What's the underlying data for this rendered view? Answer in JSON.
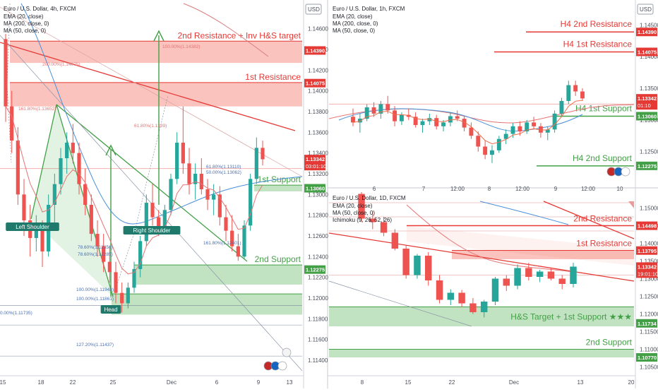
{
  "chart_data": [
    {
      "type": "candlestick",
      "header": {
        "symbol": "Euro / U.S. Dollar, 4h, FXCM",
        "lines": [
          "EMA (20, close)",
          "MA (200, close, 0)",
          "MA (50, close, 0)"
        ]
      },
      "currency": "USD",
      "ylim": [
        1.1125,
        1.1485
      ],
      "y_ticks": [
        "1.14600",
        "1.14400",
        "1.14200",
        "1.14000",
        "1.13800",
        "1.13600",
        "1.13400",
        "1.13200",
        "1.13000",
        "1.12800",
        "1.12600",
        "1.12400",
        "1.12200",
        "1.12000",
        "1.11800",
        "1.11600",
        "1.11400"
      ],
      "x_ticks": [
        "15",
        "18",
        "22",
        "25",
        "Dec",
        "6",
        "9",
        "13"
      ],
      "price_tags": [
        {
          "value": "1.14390",
          "price": 1.1439,
          "color": "#e53935"
        },
        {
          "value": "1.14075",
          "price": 1.14075,
          "color": "#e53935"
        },
        {
          "value": "1.13342",
          "sub": "03:01:10",
          "price": 1.13342,
          "color": "#e53935"
        },
        {
          "value": "1.13060",
          "price": 1.1306,
          "color": "#43a047"
        },
        {
          "value": "1.12275",
          "price": 1.12275,
          "color": "#43a047"
        }
      ],
      "zones": [
        {
          "label": "2nd Resistance + Inv H&S target",
          "from": 1.1427,
          "to": 1.1448,
          "kind": "resistance"
        },
        {
          "label": "1st Resistance",
          "from": 1.1385,
          "to": 1.1408,
          "kind": "resistance"
        },
        {
          "label": "1st Support",
          "from": 1.1303,
          "to": 1.1309,
          "kind": "support"
        },
        {
          "label": "2nd Support",
          "from": 1.1213,
          "to": 1.1232,
          "kind": "support"
        },
        {
          "label": "",
          "from": 1.1184,
          "to": 1.1204,
          "kind": "support"
        }
      ],
      "fib_labels": [
        "100.00%(1.14382)",
        "200.00%(1.14075)",
        "161.80%(1.13652)",
        "61.80%(1.1339)",
        "61.80%(1.13110)",
        "50.00%(1.13062)",
        "161.80%(1.12401)",
        "78.60%(1.12356)",
        "78.60%(1.12285)",
        "100.00%(1.11948)",
        "100.00%(1.11861)",
        "0.00%(1.11735)",
        "127.20%(1.11437)"
      ],
      "pattern_labels": [
        "Left Shoulder",
        "Head",
        "Right Shoulder"
      ],
      "candles": [
        [
          1.145,
          1.1455,
          1.137,
          1.1385
        ],
        [
          1.1385,
          1.14,
          1.134,
          1.1352
        ],
        [
          1.1352,
          1.1365,
          1.129,
          1.13
        ],
        [
          1.13,
          1.1315,
          1.126,
          1.1275
        ],
        [
          1.1275,
          1.129,
          1.124,
          1.1258
        ],
        [
          1.1258,
          1.128,
          1.1245,
          1.1268
        ],
        [
          1.1268,
          1.1275,
          1.123,
          1.1245
        ],
        [
          1.1245,
          1.13,
          1.124,
          1.129
        ],
        [
          1.129,
          1.132,
          1.127,
          1.131
        ],
        [
          1.131,
          1.1345,
          1.13,
          1.1335
        ],
        [
          1.1335,
          1.136,
          1.132,
          1.135
        ],
        [
          1.135,
          1.1368,
          1.133,
          1.134
        ],
        [
          1.134,
          1.135,
          1.13,
          1.131
        ],
        [
          1.131,
          1.1325,
          1.128,
          1.129
        ],
        [
          1.129,
          1.13,
          1.1255,
          1.1262
        ],
        [
          1.1262,
          1.1275,
          1.124,
          1.125
        ],
        [
          1.125,
          1.1262,
          1.1225,
          1.1235
        ],
        [
          1.1235,
          1.125,
          1.1215,
          1.1225
        ],
        [
          1.1225,
          1.1235,
          1.1195,
          1.1205
        ],
        [
          1.1205,
          1.1215,
          1.1186,
          1.1195
        ],
        [
          1.1195,
          1.1215,
          1.119,
          1.121
        ],
        [
          1.121,
          1.1235,
          1.1205,
          1.1228
        ],
        [
          1.1228,
          1.126,
          1.122,
          1.1255
        ],
        [
          1.1255,
          1.13,
          1.125,
          1.1292
        ],
        [
          1.1292,
          1.131,
          1.127,
          1.1278
        ],
        [
          1.1278,
          1.1285,
          1.126,
          1.1268
        ],
        [
          1.1268,
          1.129,
          1.1262,
          1.1285
        ],
        [
          1.1285,
          1.132,
          1.128,
          1.1315
        ],
        [
          1.1315,
          1.136,
          1.131,
          1.135
        ],
        [
          1.135,
          1.1385,
          1.132,
          1.133
        ],
        [
          1.133,
          1.1345,
          1.13,
          1.131
        ],
        [
          1.131,
          1.133,
          1.1295,
          1.132
        ],
        [
          1.132,
          1.1335,
          1.13,
          1.1305
        ],
        [
          1.1305,
          1.1315,
          1.1285,
          1.1295
        ],
        [
          1.1295,
          1.131,
          1.128,
          1.13
        ],
        [
          1.13,
          1.1308,
          1.127,
          1.1278
        ],
        [
          1.1278,
          1.129,
          1.1255,
          1.1265
        ],
        [
          1.1265,
          1.128,
          1.1245,
          1.125
        ],
        [
          1.125,
          1.1262,
          1.1236,
          1.124
        ],
        [
          1.124,
          1.1275,
          1.1238,
          1.127
        ],
        [
          1.127,
          1.132,
          1.1265,
          1.1315
        ],
        [
          1.1315,
          1.1355,
          1.131,
          1.1345
        ],
        [
          1.1345,
          1.1352,
          1.1328,
          1.1334
        ]
      ]
    },
    {
      "type": "candlestick",
      "header": {
        "symbol": "Euro / U.S. Dollar, 1h, FXCM",
        "lines": [
          "EMA (20, close)",
          "MA (200, close, 0)",
          "MA (50, close, 0)"
        ]
      },
      "currency": "USD",
      "ylim": [
        1.1205,
        1.1485
      ],
      "y_ticks": [
        "1.14500",
        "1.14000",
        "1.13500",
        "1.13000",
        "1.12500"
      ],
      "x_ticks": [
        "6",
        "7",
        "12:00",
        "8",
        "12:00",
        "9",
        "12:00",
        "10"
      ],
      "price_tags": [
        {
          "value": "1.14390",
          "price": 1.1439,
          "color": "#e53935"
        },
        {
          "value": "1.14075",
          "price": 1.14075,
          "color": "#e53935"
        },
        {
          "value": "1.13342",
          "sub": "01:10",
          "price": 1.13342,
          "color": "#e53935"
        },
        {
          "value": "1.13060",
          "price": 1.1306,
          "color": "#43a047"
        },
        {
          "value": "1.12275",
          "price": 1.12275,
          "color": "#43a047"
        }
      ],
      "levels": [
        {
          "label": "H4 2nd Resistance",
          "price": 1.1439,
          "kind": "resistance"
        },
        {
          "label": "H4 1st Resistance",
          "price": 1.14075,
          "kind": "resistance"
        },
        {
          "label": "H4 1st Support",
          "price": 1.1306,
          "kind": "support"
        },
        {
          "label": "H4 2nd Support",
          "price": 1.12275,
          "kind": "support"
        }
      ],
      "candles": [
        [
          1.1305,
          1.1318,
          1.129,
          1.1296
        ],
        [
          1.1296,
          1.131,
          1.128,
          1.1302
        ],
        [
          1.1302,
          1.1325,
          1.1298,
          1.132
        ],
        [
          1.132,
          1.1328,
          1.1305,
          1.131
        ],
        [
          1.131,
          1.133,
          1.1302,
          1.1325
        ],
        [
          1.1325,
          1.1338,
          1.131,
          1.1315
        ],
        [
          1.1315,
          1.1322,
          1.129,
          1.1298
        ],
        [
          1.1298,
          1.1312,
          1.1292,
          1.1308
        ],
        [
          1.1308,
          1.1318,
          1.13,
          1.1305
        ],
        [
          1.1305,
          1.1312,
          1.1288,
          1.1292
        ],
        [
          1.1292,
          1.1302,
          1.128,
          1.1298
        ],
        [
          1.1298,
          1.131,
          1.1292,
          1.1303
        ],
        [
          1.1303,
          1.1308,
          1.1285,
          1.129
        ],
        [
          1.129,
          1.13,
          1.1282,
          1.1296
        ],
        [
          1.1296,
          1.1312,
          1.129,
          1.1306
        ],
        [
          1.1306,
          1.1315,
          1.1298,
          1.1302
        ],
        [
          1.1302,
          1.1306,
          1.1282,
          1.1288
        ],
        [
          1.1288,
          1.1296,
          1.127,
          1.1275
        ],
        [
          1.1275,
          1.1282,
          1.125,
          1.1258
        ],
        [
          1.1258,
          1.1268,
          1.1238,
          1.1245
        ],
        [
          1.1245,
          1.126,
          1.1232,
          1.1252
        ],
        [
          1.1252,
          1.1275,
          1.1248,
          1.127
        ],
        [
          1.127,
          1.1285,
          1.1262,
          1.1278
        ],
        [
          1.1278,
          1.1295,
          1.1272,
          1.129
        ],
        [
          1.129,
          1.1298,
          1.1275,
          1.1282
        ],
        [
          1.1282,
          1.13,
          1.1278,
          1.1296
        ],
        [
          1.1296,
          1.1305,
          1.1285,
          1.129
        ],
        [
          1.129,
          1.1295,
          1.1272,
          1.128
        ],
        [
          1.128,
          1.129,
          1.1268,
          1.1285
        ],
        [
          1.1285,
          1.1315,
          1.128,
          1.131
        ],
        [
          1.131,
          1.1335,
          1.1305,
          1.133
        ],
        [
          1.133,
          1.1362,
          1.1325,
          1.1355
        ],
        [
          1.1355,
          1.1362,
          1.1338,
          1.1345
        ],
        [
          1.1345,
          1.135,
          1.133,
          1.1334
        ]
      ]
    },
    {
      "type": "candlestick",
      "header": {
        "symbol": "Euro / U.S. Dollar, 1D, FXCM",
        "lines": [
          "EMA (20, close)",
          "MA (50, close, 0)",
          "Ichimoku (9, 26, 52, 26)"
        ]
      },
      "currency": "USD",
      "ylim": [
        1.1025,
        1.1545
      ],
      "y_ticks": [
        "1.15000",
        "1.14500",
        "1.14000",
        "1.13500",
        "1.13000",
        "1.12500",
        "1.12000",
        "1.11500",
        "1.11000",
        "1.10500"
      ],
      "x_ticks": [
        "8",
        "15",
        "22",
        "Dec",
        "13",
        "20"
      ],
      "price_tags": [
        {
          "value": "1.14498",
          "price": 1.14498,
          "color": "#e53935"
        },
        {
          "value": "1.13795",
          "price": 1.13795,
          "color": "#e53935"
        },
        {
          "value": "1.13342",
          "sub": "19:01:10",
          "price": 1.13342,
          "color": "#e53935"
        },
        {
          "value": "1.11734",
          "price": 1.11734,
          "color": "#43a047"
        },
        {
          "value": "1.10770",
          "price": 1.1077,
          "color": "#43a047"
        }
      ],
      "zones": [
        {
          "label": "2nd Resistance",
          "from": 1.145,
          "to": 1.145,
          "kind": "resistance-line"
        },
        {
          "label": "1st Resistance",
          "from": 1.1355,
          "to": 1.138,
          "kind": "resistance"
        },
        {
          "label": "H&S Target + 1st Support ★★★",
          "from": 1.1165,
          "to": 1.122,
          "kind": "support"
        },
        {
          "label": "2nd Support",
          "from": 1.1077,
          "to": 1.11,
          "kind": "support"
        }
      ],
      "candles": [
        [
          1.154,
          1.1545,
          1.146,
          1.147
        ],
        [
          1.147,
          1.149,
          1.144,
          1.146
        ],
        [
          1.146,
          1.1475,
          1.142,
          1.143
        ],
        [
          1.143,
          1.144,
          1.138,
          1.1385
        ],
        [
          1.1385,
          1.1395,
          1.13,
          1.131
        ],
        [
          1.131,
          1.137,
          1.13,
          1.1365
        ],
        [
          1.1365,
          1.1375,
          1.128,
          1.1295
        ],
        [
          1.1295,
          1.131,
          1.123,
          1.124
        ],
        [
          1.124,
          1.127,
          1.1225,
          1.126
        ],
        [
          1.126,
          1.1268,
          1.122,
          1.123
        ],
        [
          1.123,
          1.1245,
          1.12,
          1.1205
        ],
        [
          1.1205,
          1.124,
          1.119,
          1.1235
        ],
        [
          1.1235,
          1.1305,
          1.1225,
          1.13
        ],
        [
          1.13,
          1.131,
          1.1265,
          1.128
        ],
        [
          1.128,
          1.134,
          1.127,
          1.133
        ],
        [
          1.133,
          1.1345,
          1.1295,
          1.1305
        ],
        [
          1.1305,
          1.1325,
          1.129,
          1.132
        ],
        [
          1.132,
          1.133,
          1.1295,
          1.13
        ],
        [
          1.13,
          1.131,
          1.127,
          1.1285
        ],
        [
          1.1285,
          1.1345,
          1.1275,
          1.1334
        ]
      ]
    }
  ]
}
